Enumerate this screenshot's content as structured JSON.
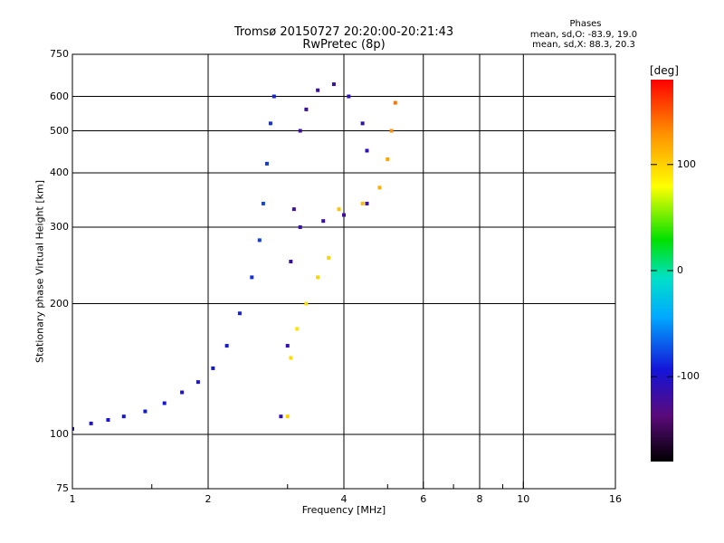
{
  "chart_data": {
    "type": "scatter",
    "title": "Tromsø 20150727 20:20:00-20:21:43",
    "subtitle": "RwPretec (8p)",
    "xlabel": "Frequency [MHz]",
    "ylabel": "Stationary phase Virtual Height [km]",
    "x_scale": "log",
    "y_scale": "log",
    "xlim": [
      1,
      16
    ],
    "ylim": [
      75,
      750
    ],
    "x_ticks": [
      "1",
      "2",
      "4",
      "6",
      "8",
      "10",
      "16"
    ],
    "y_ticks": [
      "75",
      "100",
      "200",
      "300",
      "400",
      "500",
      "600",
      "750"
    ],
    "grid": true,
    "stats": {
      "heading": "Phases",
      "line_o": "mean, sd,O: -83.9, 19.0",
      "line_x": "mean, sd,X: 88.3, 20.3"
    },
    "colorbar": {
      "unit": "[deg]",
      "range": [
        -180,
        180
      ],
      "ticks": [
        "100",
        "0",
        "-100"
      ],
      "colormap": "rainbow"
    },
    "series": [
      {
        "points": [
          {
            "x": 1.0,
            "y": 103,
            "c": -105
          },
          {
            "x": 1.1,
            "y": 106,
            "c": -100
          },
          {
            "x": 1.2,
            "y": 108,
            "c": -98
          },
          {
            "x": 1.3,
            "y": 110,
            "c": -95
          },
          {
            "x": 1.45,
            "y": 113,
            "c": -92
          },
          {
            "x": 1.6,
            "y": 118,
            "c": -95
          },
          {
            "x": 1.75,
            "y": 125,
            "c": -100
          },
          {
            "x": 1.9,
            "y": 132,
            "c": -97
          },
          {
            "x": 2.05,
            "y": 142,
            "c": -95
          },
          {
            "x": 2.2,
            "y": 160,
            "c": -92
          },
          {
            "x": 2.35,
            "y": 190,
            "c": -90
          },
          {
            "x": 2.5,
            "y": 230,
            "c": -85
          },
          {
            "x": 2.6,
            "y": 280,
            "c": -80
          },
          {
            "x": 2.65,
            "y": 340,
            "c": -78
          },
          {
            "x": 2.7,
            "y": 420,
            "c": -82
          },
          {
            "x": 2.75,
            "y": 520,
            "c": -85
          },
          {
            "x": 2.8,
            "y": 600,
            "c": -88
          }
        ]
      },
      {
        "points": [
          {
            "x": 2.9,
            "y": 110,
            "c": -110
          },
          {
            "x": 3.0,
            "y": 160,
            "c": -112
          },
          {
            "x": 3.05,
            "y": 250,
            "c": -115
          },
          {
            "x": 3.1,
            "y": 330,
            "c": -118
          },
          {
            "x": 3.2,
            "y": 500,
            "c": -120
          },
          {
            "x": 3.3,
            "y": 560,
            "c": -118
          },
          {
            "x": 3.5,
            "y": 620,
            "c": -115
          },
          {
            "x": 3.8,
            "y": 640,
            "c": -112
          },
          {
            "x": 4.1,
            "y": 600,
            "c": -110
          },
          {
            "x": 4.4,
            "y": 520,
            "c": -110
          },
          {
            "x": 4.5,
            "y": 450,
            "c": -112
          },
          {
            "x": 4.5,
            "y": 340,
            "c": -115
          },
          {
            "x": 4.0,
            "y": 320,
            "c": -120
          },
          {
            "x": 3.6,
            "y": 310,
            "c": -118
          },
          {
            "x": 3.2,
            "y": 300,
            "c": -115
          }
        ]
      },
      {
        "points": [
          {
            "x": 3.0,
            "y": 110,
            "c": 100
          },
          {
            "x": 3.05,
            "y": 150,
            "c": 95
          },
          {
            "x": 3.15,
            "y": 175,
            "c": 92
          },
          {
            "x": 3.3,
            "y": 200,
            "c": 95
          },
          {
            "x": 3.5,
            "y": 230,
            "c": 100
          },
          {
            "x": 3.7,
            "y": 255,
            "c": 98
          },
          {
            "x": 3.9,
            "y": 330,
            "c": 105
          },
          {
            "x": 4.4,
            "y": 340,
            "c": 110
          },
          {
            "x": 4.8,
            "y": 370,
            "c": 115
          },
          {
            "x": 5.0,
            "y": 430,
            "c": 120
          },
          {
            "x": 5.1,
            "y": 500,
            "c": 130
          },
          {
            "x": 5.2,
            "y": 580,
            "c": 140
          }
        ]
      }
    ]
  }
}
